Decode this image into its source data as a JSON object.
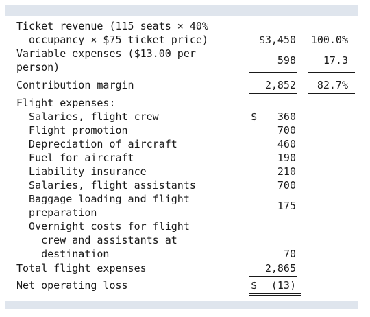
{
  "rows": {
    "ticket_revenue": {
      "lines": [
        "Ticket revenue (115 seats × 40%",
        "  occupancy × $75 ticket price)"
      ],
      "amount": "$3,450",
      "percent": "100.0%"
    },
    "variable_expenses": {
      "lines": [
        "Variable expenses ($13.00 per",
        "person)"
      ],
      "amount": "598",
      "percent": "17.3"
    },
    "contribution_margin": {
      "label": "Contribution margin",
      "amount": "2,852",
      "percent": "82.7%"
    },
    "flight_expenses_header": "Flight expenses:",
    "flight_expenses": [
      {
        "lines": [
          "  Salaries, flight crew"
        ],
        "dollar": "$",
        "amount": "360"
      },
      {
        "lines": [
          "  Flight promotion"
        ],
        "amount": "700"
      },
      {
        "lines": [
          "  Depreciation of aircraft"
        ],
        "amount": "460"
      },
      {
        "lines": [
          "  Fuel for aircraft"
        ],
        "amount": "190"
      },
      {
        "lines": [
          "  Liability insurance"
        ],
        "amount": "210"
      },
      {
        "lines": [
          "  Salaries, flight assistants"
        ],
        "amount": "700"
      },
      {
        "lines": [
          "  Baggage loading and flight",
          "  preparation"
        ],
        "amount": "175"
      },
      {
        "lines": [
          "  Overnight costs for flight",
          "    crew and assistants at",
          "    destination"
        ],
        "amount": "70"
      }
    ],
    "total_flight_expenses": {
      "label": "Total flight expenses",
      "amount": "2,865"
    },
    "net_operating_loss": {
      "label": "Net operating loss",
      "dollar": "$",
      "amount": "(13)"
    }
  }
}
